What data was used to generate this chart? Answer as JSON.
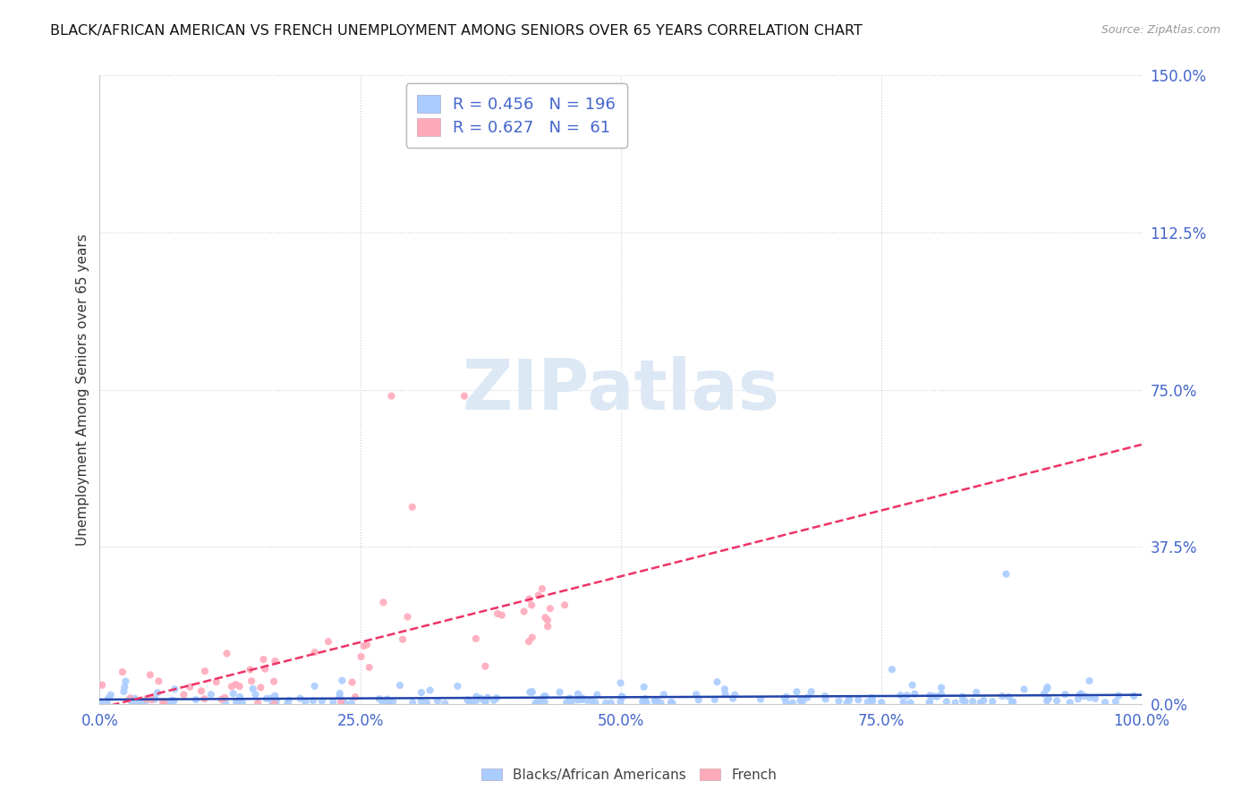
{
  "title": "BLACK/AFRICAN AMERICAN VS FRENCH UNEMPLOYMENT AMONG SENIORS OVER 65 YEARS CORRELATION CHART",
  "source": "Source: ZipAtlas.com",
  "ylabel": "Unemployment Among Seniors over 65 years",
  "xlim": [
    0.0,
    1.0
  ],
  "ylim": [
    0.0,
    1.5
  ],
  "ytick_labels": [
    "0.0%",
    "37.5%",
    "75.0%",
    "112.5%",
    "150.0%"
  ],
  "ytick_values": [
    0.0,
    0.375,
    0.75,
    1.125,
    1.5
  ],
  "xtick_labels": [
    "0.0%",
    "25.0%",
    "50.0%",
    "75.0%",
    "100.0%"
  ],
  "xtick_values": [
    0.0,
    0.25,
    0.5,
    0.75,
    1.0
  ],
  "bottom_legend_labels": [
    "Blacks/African Americans",
    "French"
  ],
  "blue_scatter_color": "#aaccff",
  "pink_scatter_color": "#ffaabb",
  "blue_line_color": "#2244aa",
  "pink_line_color": "#ee3366",
  "R_blue": 0.456,
  "N_blue": 196,
  "R_pink": 0.627,
  "N_pink": 61,
  "watermark": "ZIPatlas",
  "background_color": "#ffffff",
  "grid_color": "#ccccdd",
  "tick_label_color": "#4466cc",
  "legend_text_color": "#4466cc"
}
